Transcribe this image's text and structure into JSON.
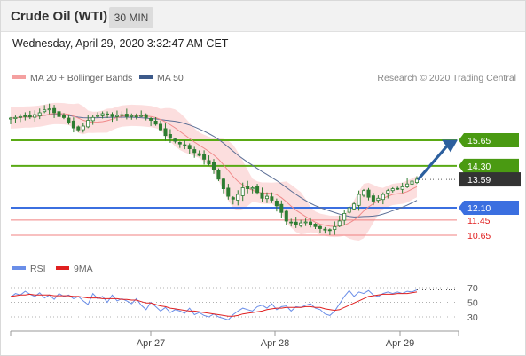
{
  "header": {
    "title": "Crude Oil (WTI)",
    "timeframe": "30 MIN"
  },
  "timestamp": "Wednesday, April 29, 2020 3:32:47 AM CET",
  "legend": {
    "ma20": "MA 20 + Bollinger Bands",
    "ma50": "MA 50",
    "credit": "Research © 2020 Trading Central",
    "rsi": "RSI",
    "rsi_ma": "9MA"
  },
  "colors": {
    "candle": "#2e7d32",
    "bollinger_fill": "#fbd3d3",
    "ma20": "#f08a8a",
    "ma50": "#5c6f96",
    "resistance": "#5aaa14",
    "pivot": "#3b6fe0",
    "support": "#f08080",
    "arrow": "#2c5f9e",
    "rsi": "#6a8ee8",
    "rsi_ma": "#e02020",
    "current_price_box": "#333333"
  },
  "chart_data": [
    {
      "type": "candlestick",
      "title": "Crude Oil (WTI)",
      "x_labels": [
        "Apr 27",
        "Apr 28",
        "Apr 29"
      ],
      "ylim": [
        10.2,
        16.4
      ],
      "levels": [
        {
          "label": "15.65",
          "value": 15.65,
          "kind": "resistance"
        },
        {
          "label": "14.30",
          "value": 14.3,
          "kind": "resistance"
        },
        {
          "label": "12.10",
          "value": 12.1,
          "kind": "pivot"
        },
        {
          "label": "11.45",
          "value": 11.45,
          "kind": "support"
        },
        {
          "label": "10.65",
          "value": 10.65,
          "kind": "support"
        }
      ],
      "current_price": {
        "label": "13.59",
        "value": 13.59
      },
      "forecast_arrow": {
        "from": 13.62,
        "to": 15.58
      },
      "closes": [
        16.82,
        16.85,
        16.9,
        16.92,
        16.88,
        17.0,
        17.1,
        17.25,
        17.3,
        17.1,
        16.9,
        16.85,
        16.6,
        16.3,
        16.2,
        16.4,
        16.7,
        16.85,
        16.95,
        17.05,
        17.0,
        16.9,
        16.95,
        17.0,
        16.9,
        16.95,
        16.9,
        16.95,
        16.85,
        16.7,
        16.5,
        16.2,
        15.9,
        15.75,
        15.6,
        15.45,
        15.35,
        15.2,
        15.0,
        14.85,
        14.65,
        14.4,
        14.1,
        13.6,
        13.1,
        12.7,
        12.55,
        12.8,
        13.15,
        13.1,
        13.15,
        12.9,
        12.6,
        12.7,
        12.5,
        12.2,
        11.85,
        11.4,
        11.3,
        11.2,
        11.3,
        11.35,
        11.2,
        11.1,
        11.0,
        10.95,
        10.9,
        11.1,
        11.4,
        11.8,
        12.1,
        12.3,
        12.8,
        13.0,
        12.65,
        12.45,
        12.6,
        12.8,
        13.0,
        13.1,
        13.1,
        13.2,
        13.35,
        13.5,
        13.6
      ]
    },
    {
      "type": "line",
      "title": "RSI",
      "ylim": [
        10,
        80
      ],
      "y_ticks": [
        70,
        50,
        30
      ],
      "series": [
        {
          "name": "RSI",
          "values": [
            57,
            62,
            60,
            65,
            61,
            58,
            63,
            56,
            60,
            54,
            62,
            58,
            60,
            55,
            58,
            52,
            47,
            62,
            55,
            58,
            50,
            60,
            52,
            55,
            52,
            48,
            55,
            46,
            40,
            50,
            44,
            38,
            43,
            36,
            40,
            38,
            35,
            42,
            33,
            36,
            32,
            30,
            34,
            30,
            28,
            26,
            33,
            38,
            42,
            40,
            38,
            44,
            46,
            42,
            48,
            40,
            44,
            45,
            38,
            44,
            43,
            46,
            48,
            42,
            40,
            34,
            32,
            38,
            48,
            58,
            66,
            58,
            64,
            62,
            66,
            60,
            58,
            62,
            64,
            62,
            64,
            62,
            65,
            64,
            67
          ]
        },
        {
          "name": "9MA",
          "values": [
            58,
            59,
            60,
            60,
            61,
            60,
            60,
            60,
            60,
            59,
            59,
            59,
            59,
            58,
            58,
            57,
            56,
            56,
            56,
            55,
            55,
            55,
            55,
            54,
            54,
            53,
            53,
            51,
            49,
            49,
            47,
            45,
            44,
            42,
            41,
            40,
            39,
            38,
            38,
            37,
            36,
            35,
            34,
            33,
            32,
            31,
            31,
            32,
            34,
            35,
            36,
            37,
            38,
            40,
            41,
            42,
            42,
            43,
            43,
            43,
            43,
            44,
            44,
            43,
            43,
            41,
            40,
            39,
            40,
            43,
            46,
            49,
            52,
            55,
            58,
            59,
            60,
            61,
            61,
            61,
            62,
            62,
            62,
            63,
            64
          ]
        }
      ]
    }
  ]
}
